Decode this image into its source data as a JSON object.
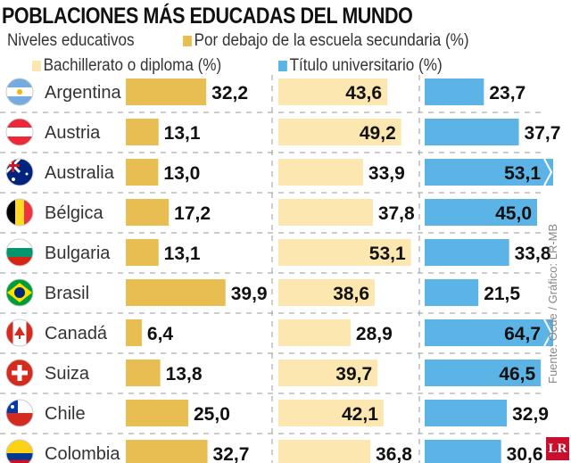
{
  "chart_data": {
    "type": "bar",
    "title": "POBLACIONES MÁS EDUCADAS DEL MUNDO",
    "legend_title": "Niveles educativos",
    "categories": [
      "Argentina",
      "Austria",
      "Australia",
      "Bélgica",
      "Bulgaria",
      "Brasil",
      "Canadá",
      "Suiza",
      "Chile",
      "Colombia"
    ],
    "flags": [
      "argentina-flag",
      "austria-flag",
      "australia-flag",
      "belgium-flag",
      "bulgaria-flag",
      "brazil-flag",
      "canada-flag",
      "switzerland-flag",
      "chile-flag",
      "colombia-flag"
    ],
    "series": [
      {
        "name": "Por debajo de la escuela secundaria (%)",
        "color": "#e8bd52",
        "values": [
          32.2,
          13.1,
          13.0,
          17.2,
          13.1,
          39.9,
          6.4,
          13.8,
          25.0,
          32.7
        ]
      },
      {
        "name": "Bachillerato o diploma (%)",
        "color": "#fde7b0",
        "values": [
          43.6,
          49.2,
          33.9,
          37.8,
          53.1,
          38.6,
          28.9,
          39.7,
          42.1,
          36.8
        ]
      },
      {
        "name": "Título universitario (%)",
        "color": "#5cb3e6",
        "values": [
          23.7,
          37.7,
          53.1,
          45.0,
          33.8,
          21.5,
          64.7,
          46.5,
          32.9,
          30.6
        ]
      }
    ],
    "legend_placement": "top",
    "source": "Fuente: Ocde / Gráfico: LR-MB",
    "logo": "LR"
  }
}
